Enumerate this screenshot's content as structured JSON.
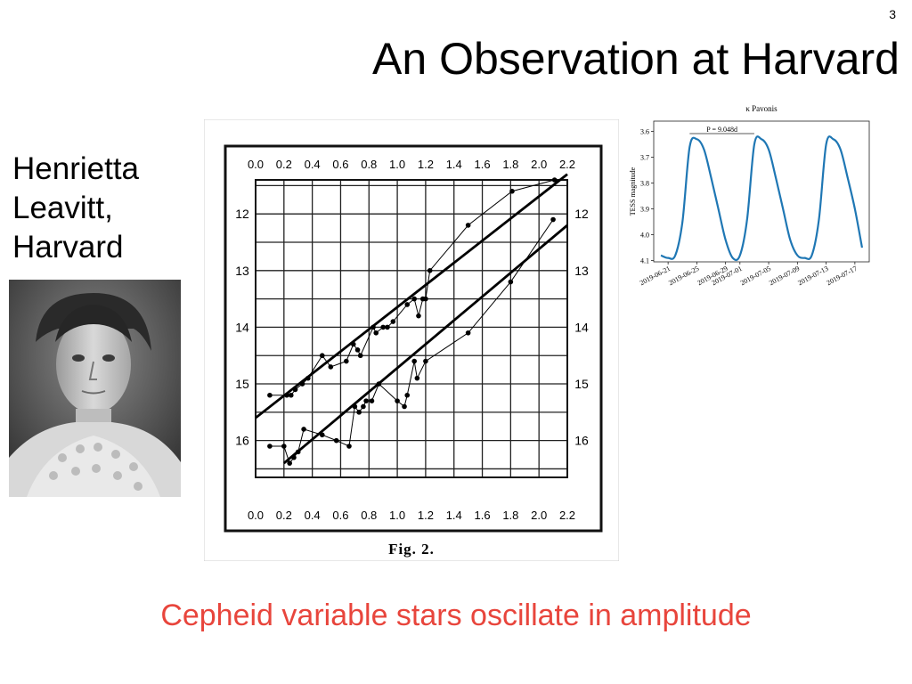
{
  "slide": {
    "number": "3",
    "title": "An Observation at Harvard",
    "person_lines": [
      "Henrietta",
      "Leavitt,",
      "Harvard"
    ],
    "caption": "Cepheid variable stars oscillate in amplitude",
    "caption_color": "#e8453c",
    "photo_alt": "Henrietta Leavitt portrait"
  },
  "figure2": {
    "caption": "Fig. 2.",
    "x_tick_labels": [
      "0.0",
      "0.2",
      "0.4",
      "0.6",
      "0.8",
      "1.0",
      "1.2",
      "1.4",
      "1.6",
      "1.8",
      "2.0",
      "2.2"
    ],
    "y_tick_labels": [
      "12",
      "13",
      "14",
      "15",
      "16"
    ]
  },
  "chart_data": [
    {
      "type": "scatter",
      "title": "",
      "xlabel": "",
      "ylabel": "",
      "x_ticks": [
        0.0,
        0.2,
        0.4,
        0.6,
        0.8,
        1.0,
        1.2,
        1.4,
        1.6,
        1.8,
        2.0,
        2.2
      ],
      "y_ticks": [
        12,
        13,
        14,
        15,
        16
      ],
      "xlim": [
        0.0,
        2.3
      ],
      "ylim": [
        16.7,
        11.1
      ],
      "y_inverted": true,
      "grid": true,
      "series": [
        {
          "x": [
            0.1,
            0.22,
            0.25,
            0.28,
            0.33,
            0.37,
            0.47,
            0.53,
            0.64,
            0.69,
            0.72,
            0.74,
            0.83,
            0.85,
            0.9,
            0.93,
            0.97,
            1.07,
            1.12,
            1.15,
            1.18,
            1.2,
            1.23,
            1.5,
            1.81,
            2.11
          ],
          "y": [
            15.2,
            15.2,
            15.2,
            15.1,
            15.0,
            14.9,
            14.5,
            14.7,
            14.6,
            14.3,
            14.4,
            14.5,
            14.0,
            14.1,
            14.0,
            14.0,
            13.9,
            13.6,
            13.5,
            13.8,
            13.5,
            13.5,
            13.0,
            12.2,
            11.6,
            11.4
          ],
          "trend": [
            [
              0.0,
              15.6
            ],
            [
              2.2,
              11.3
            ]
          ]
        },
        {
          "x": [
            0.1,
            0.2,
            0.24,
            0.27,
            0.3,
            0.34,
            0.47,
            0.57,
            0.66,
            0.7,
            0.73,
            0.76,
            0.78,
            0.82,
            0.87,
            1.0,
            1.05,
            1.07,
            1.12,
            1.14,
            1.2,
            1.5,
            1.8,
            2.1
          ],
          "y": [
            16.1,
            16.1,
            16.4,
            16.3,
            16.2,
            15.8,
            15.9,
            16.0,
            16.1,
            15.4,
            15.5,
            15.4,
            15.3,
            15.3,
            15.0,
            15.3,
            15.4,
            15.2,
            14.6,
            14.9,
            14.6,
            14.1,
            13.2,
            12.1
          ],
          "trend": [
            [
              0.2,
              16.4
            ],
            [
              2.2,
              12.2
            ]
          ]
        }
      ]
    },
    {
      "type": "line",
      "title": "κ Pavonis",
      "xlabel": "",
      "ylabel": "TESS magnitude",
      "annotation": "P = 9.048d",
      "x_tick_labels": [
        "2019-06-21",
        "2019-06-25",
        "2019-06-29",
        "2019-07-01",
        "2019-07-05",
        "2019-07-09",
        "2019-07-13",
        "2019-07-17"
      ],
      "y_tick_labels": [
        "3.6",
        "3.7",
        "3.8",
        "3.9",
        "4.0",
        "4.1"
      ],
      "ylim": [
        4.1,
        3.55
      ],
      "y_inverted": true,
      "line_color": "#1f77b4",
      "series": [
        {
          "x": [
            "2019-06-20",
            "2019-06-21",
            "2019-06-22",
            "2019-06-23",
            "2019-06-24",
            "2019-06-25",
            "2019-06-26",
            "2019-06-27",
            "2019-06-28",
            "2019-06-29",
            "2019-06-30",
            "2019-07-01",
            "2019-07-02",
            "2019-07-03",
            "2019-07-04",
            "2019-07-05",
            "2019-07-06",
            "2019-07-07",
            "2019-07-08",
            "2019-07-09",
            "2019-07-10",
            "2019-07-11",
            "2019-07-12",
            "2019-07-13",
            "2019-07-14",
            "2019-07-15",
            "2019-07-16",
            "2019-07-17",
            "2019-07-18"
          ],
          "y": [
            4.08,
            4.09,
            4.08,
            3.95,
            3.66,
            3.63,
            3.67,
            3.78,
            3.9,
            4.02,
            4.09,
            4.08,
            3.94,
            3.65,
            3.63,
            3.67,
            3.78,
            3.9,
            4.02,
            4.08,
            4.09,
            4.08,
            3.94,
            3.65,
            3.63,
            3.67,
            3.78,
            3.9,
            4.05
          ]
        }
      ]
    }
  ]
}
